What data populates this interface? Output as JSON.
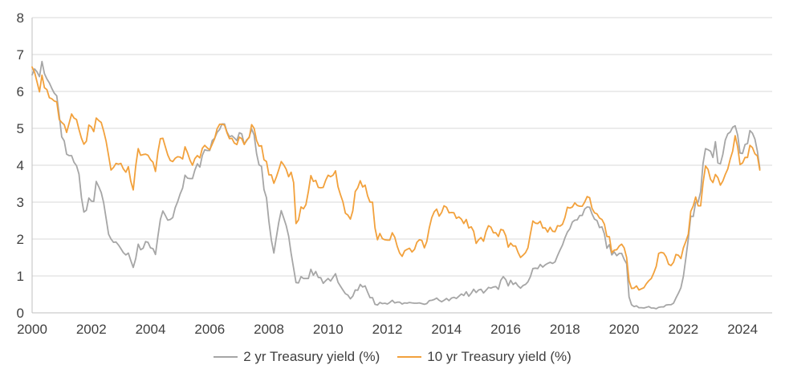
{
  "chart_data": {
    "type": "line",
    "title": "",
    "xlabel": "",
    "ylabel": "",
    "xlim": [
      2000,
      2025
    ],
    "ylim": [
      0,
      8
    ],
    "x_ticks": [
      2000,
      2002,
      2004,
      2006,
      2008,
      2010,
      2012,
      2014,
      2016,
      2018,
      2020,
      2022,
      2024
    ],
    "y_ticks": [
      0,
      1,
      2,
      3,
      4,
      5,
      6,
      7,
      8
    ],
    "grid": "horizontal",
    "legend_position": "bottom-center",
    "grid_color": "#D9D9D9",
    "axis_color": "#BFBFBF",
    "text_color": "#404040",
    "x_start_year": 2000,
    "x_step_months": 1,
    "series": [
      {
        "name": "2 yr Treasury yield (%)",
        "color": "#A6A6A6",
        "values": [
          6.45,
          6.61,
          6.53,
          6.4,
          6.81,
          6.48,
          6.34,
          6.23,
          6.08,
          5.95,
          5.88,
          5.35,
          4.77,
          4.66,
          4.3,
          4.26,
          4.26,
          4.08,
          3.99,
          3.76,
          3.12,
          2.73,
          2.78,
          3.11,
          3.03,
          3.02,
          3.56,
          3.42,
          3.26,
          2.99,
          2.56,
          2.13,
          2.0,
          1.91,
          1.92,
          1.84,
          1.74,
          1.63,
          1.57,
          1.62,
          1.42,
          1.23,
          1.47,
          1.86,
          1.71,
          1.75,
          1.93,
          1.91,
          1.76,
          1.74,
          1.58,
          2.07,
          2.53,
          2.76,
          2.64,
          2.51,
          2.53,
          2.58,
          2.85,
          3.01,
          3.22,
          3.38,
          3.73,
          3.65,
          3.64,
          3.64,
          3.87,
          4.04,
          3.95,
          4.27,
          4.42,
          4.4,
          4.4,
          4.67,
          4.73,
          4.89,
          4.97,
          5.12,
          5.12,
          4.9,
          4.77,
          4.8,
          4.74,
          4.67,
          4.88,
          4.85,
          4.57,
          4.67,
          4.77,
          4.98,
          4.82,
          4.31,
          4.01,
          3.97,
          3.34,
          3.12,
          2.48,
          1.97,
          1.62,
          2.05,
          2.45,
          2.77,
          2.57,
          2.36,
          2.08,
          1.61,
          1.21,
          0.82,
          0.81,
          0.98,
          0.93,
          0.93,
          0.93,
          1.18,
          1.02,
          1.12,
          0.96,
          0.95,
          0.8,
          0.87,
          0.93,
          0.86,
          0.96,
          1.06,
          0.83,
          0.72,
          0.62,
          0.52,
          0.48,
          0.38,
          0.45,
          0.62,
          0.61,
          0.77,
          0.7,
          0.73,
          0.56,
          0.41,
          0.41,
          0.23,
          0.21,
          0.28,
          0.25,
          0.26,
          0.24,
          0.28,
          0.34,
          0.27,
          0.29,
          0.29,
          0.24,
          0.27,
          0.26,
          0.28,
          0.27,
          0.26,
          0.26,
          0.27,
          0.25,
          0.23,
          0.25,
          0.33,
          0.34,
          0.36,
          0.4,
          0.34,
          0.3,
          0.34,
          0.39,
          0.33,
          0.4,
          0.42,
          0.39,
          0.45,
          0.51,
          0.47,
          0.57,
          0.45,
          0.53,
          0.64,
          0.55,
          0.62,
          0.64,
          0.54,
          0.61,
          0.69,
          0.67,
          0.7,
          0.71,
          0.64,
          0.88,
          0.98,
          0.9,
          0.73,
          0.88,
          0.77,
          0.82,
          0.73,
          0.67,
          0.74,
          0.77,
          0.84,
          0.98,
          1.2,
          1.21,
          1.2,
          1.31,
          1.24,
          1.3,
          1.34,
          1.37,
          1.34,
          1.38,
          1.55,
          1.7,
          1.84,
          2.03,
          2.19,
          2.28,
          2.46,
          2.51,
          2.52,
          2.64,
          2.64,
          2.81,
          2.87,
          2.86,
          2.68,
          2.54,
          2.5,
          2.31,
          2.33,
          2.14,
          1.75,
          1.85,
          1.57,
          1.65,
          1.55,
          1.61,
          1.61,
          1.45,
          1.33,
          0.43,
          0.22,
          0.17,
          0.19,
          0.14,
          0.14,
          0.13,
          0.15,
          0.17,
          0.13,
          0.13,
          0.11,
          0.15,
          0.16,
          0.16,
          0.21,
          0.22,
          0.22,
          0.26,
          0.4,
          0.53,
          0.68,
          0.99,
          1.47,
          2.0,
          2.62,
          2.61,
          3.0,
          3.0,
          3.28,
          4.05,
          4.45,
          4.42,
          4.38,
          4.21,
          4.64,
          4.06,
          4.04,
          4.29,
          4.68,
          4.85,
          4.9,
          5.03,
          5.07,
          4.82,
          4.33,
          4.32,
          4.56,
          4.59,
          4.94,
          4.87,
          4.71,
          4.38,
          3.91
        ]
      },
      {
        "name": "10 yr Treasury yield (%)",
        "color": "#F2A13C",
        "values": [
          6.66,
          6.52,
          6.26,
          5.99,
          6.44,
          6.1,
          6.05,
          5.83,
          5.8,
          5.74,
          5.72,
          5.24,
          5.16,
          5.1,
          4.89,
          5.14,
          5.39,
          5.28,
          5.24,
          4.97,
          4.73,
          4.57,
          4.65,
          5.09,
          5.04,
          4.91,
          5.28,
          5.21,
          5.16,
          4.93,
          4.65,
          4.26,
          3.87,
          3.94,
          4.05,
          4.03,
          4.05,
          3.9,
          3.81,
          3.96,
          3.57,
          3.33,
          3.98,
          4.45,
          4.27,
          4.29,
          4.3,
          4.27,
          4.15,
          4.08,
          3.83,
          4.35,
          4.72,
          4.73,
          4.5,
          4.28,
          4.13,
          4.1,
          4.19,
          4.23,
          4.22,
          4.17,
          4.5,
          4.34,
          4.14,
          4.0,
          4.18,
          4.26,
          4.2,
          4.46,
          4.54,
          4.47,
          4.42,
          4.57,
          4.72,
          4.99,
          5.11,
          5.11,
          5.09,
          4.88,
          4.72,
          4.73,
          4.6,
          4.56,
          4.76,
          4.72,
          4.56,
          4.69,
          4.75,
          5.1,
          5.0,
          4.67,
          4.52,
          4.53,
          4.15,
          4.1,
          3.74,
          3.74,
          3.51,
          3.68,
          3.88,
          4.1,
          4.01,
          3.89,
          3.69,
          3.81,
          3.53,
          2.42,
          2.52,
          2.87,
          2.82,
          2.93,
          3.29,
          3.72,
          3.56,
          3.59,
          3.4,
          3.39,
          3.4,
          3.59,
          3.73,
          3.69,
          3.73,
          3.85,
          3.42,
          3.2,
          3.01,
          2.7,
          2.65,
          2.54,
          2.76,
          3.29,
          3.39,
          3.58,
          3.41,
          3.46,
          3.17,
          3.0,
          3.0,
          2.3,
          1.98,
          2.15,
          2.01,
          1.98,
          1.97,
          1.97,
          2.17,
          2.05,
          1.8,
          1.62,
          1.53,
          1.68,
          1.72,
          1.75,
          1.65,
          1.72,
          1.91,
          1.98,
          1.96,
          1.76,
          1.93,
          2.3,
          2.58,
          2.74,
          2.81,
          2.62,
          2.72,
          2.9,
          2.86,
          2.71,
          2.72,
          2.71,
          2.56,
          2.6,
          2.54,
          2.42,
          2.53,
          2.3,
          2.33,
          2.21,
          1.88,
          1.98,
          2.04,
          1.94,
          2.2,
          2.36,
          2.32,
          2.17,
          2.17,
          2.07,
          2.26,
          2.24,
          2.09,
          1.78,
          1.89,
          1.81,
          1.81,
          1.64,
          1.5,
          1.56,
          1.63,
          1.76,
          2.14,
          2.49,
          2.43,
          2.42,
          2.48,
          2.3,
          2.3,
          2.19,
          2.32,
          2.21,
          2.2,
          2.36,
          2.35,
          2.4,
          2.58,
          2.86,
          2.84,
          2.87,
          2.98,
          2.91,
          2.89,
          2.89,
          3.0,
          3.15,
          3.12,
          2.83,
          2.71,
          2.68,
          2.57,
          2.53,
          2.4,
          2.07,
          2.06,
          1.63,
          1.7,
          1.71,
          1.81,
          1.86,
          1.76,
          1.5,
          0.87,
          0.66,
          0.67,
          0.73,
          0.62,
          0.65,
          0.68,
          0.79,
          0.87,
          0.93,
          1.08,
          1.26,
          1.61,
          1.64,
          1.62,
          1.52,
          1.32,
          1.28,
          1.37,
          1.58,
          1.56,
          1.47,
          1.76,
          1.93,
          2.13,
          2.75,
          2.9,
          3.14,
          2.9,
          2.9,
          3.52,
          3.98,
          3.89,
          3.62,
          3.53,
          3.75,
          3.66,
          3.46,
          3.57,
          3.75,
          3.9,
          4.17,
          4.38,
          4.8,
          4.5,
          4.02,
          4.06,
          4.21,
          4.21,
          4.54,
          4.48,
          4.31,
          4.25,
          3.87
        ]
      }
    ]
  }
}
